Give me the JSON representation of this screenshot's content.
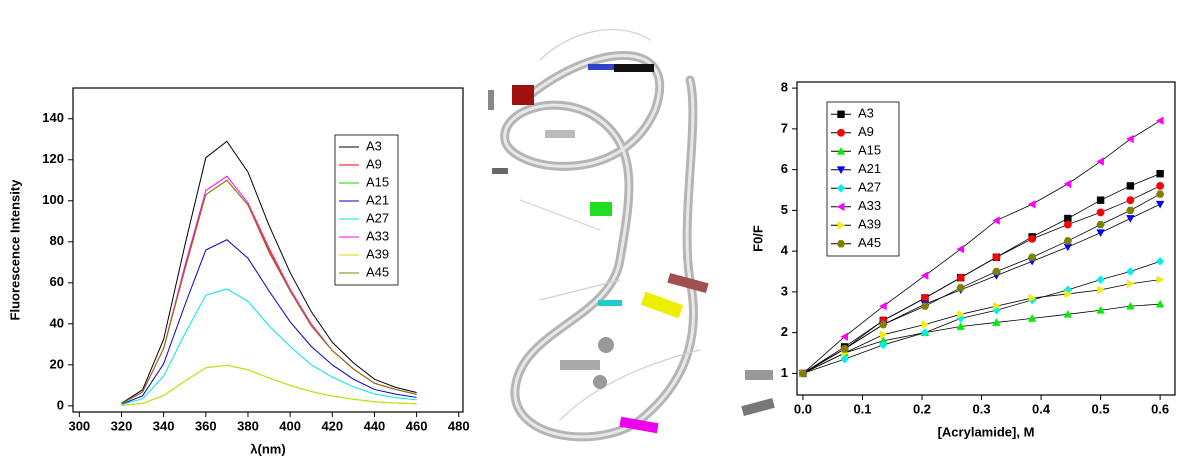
{
  "chart_data": [
    {
      "type": "line",
      "x_label": "λ(nm)",
      "y_label": "Fluorescence Intensity",
      "legend": "upper right",
      "markers": false,
      "x": [
        320,
        330,
        340,
        350,
        360,
        370,
        380,
        390,
        400,
        410,
        420,
        430,
        440,
        450,
        460
      ],
      "xlim": [
        297,
        482
      ],
      "ylim": [
        -3,
        155
      ],
      "xticks": [
        300,
        320,
        340,
        360,
        380,
        400,
        420,
        440,
        460,
        480
      ],
      "yticks": [
        0,
        20,
        40,
        60,
        80,
        100,
        120,
        140
      ],
      "series": [
        {
          "name": "A3",
          "color": "#000000",
          "values": [
            1.3,
            7.8,
            32.5,
            78,
            121,
            129,
            114,
            88,
            65,
            46,
            31,
            21,
            13,
            9,
            6.5
          ]
        },
        {
          "name": "A9",
          "color": "#ff0000",
          "values": [
            1.1,
            6.7,
            28,
            67,
            103,
            110,
            98,
            75,
            56,
            39,
            27,
            18,
            11,
            8,
            5.6
          ]
        },
        {
          "name": "A15",
          "color": "#00dd00",
          "values": [
            0.2,
            1.2,
            5,
            12,
            18.6,
            19.8,
            17.6,
            13.6,
            10,
            7,
            4.8,
            3.2,
            2,
            1.4,
            1
          ]
        },
        {
          "name": "A21",
          "color": "#0000cc",
          "values": [
            0.8,
            4.9,
            20.5,
            49,
            76,
            81,
            72,
            56,
            41,
            29,
            20,
            13,
            8,
            5.7,
            4.1
          ]
        },
        {
          "name": "A27",
          "color": "#00e5ee",
          "values": [
            0.6,
            3.5,
            14.5,
            35,
            54,
            57,
            51,
            39,
            29,
            20,
            14,
            9.3,
            5.8,
            4,
            2.9
          ]
        },
        {
          "name": "A33",
          "color": "#ff00ff",
          "values": [
            1.1,
            6.8,
            28,
            68,
            105,
            112,
            99,
            77,
            57,
            40,
            27,
            18,
            11,
            8,
            5.7
          ]
        },
        {
          "name": "A39",
          "color": "#dddd00",
          "values": [
            0.2,
            1.2,
            5,
            12,
            18.6,
            19.8,
            17.6,
            13.6,
            10,
            7,
            4.8,
            3.2,
            2,
            1.4,
            1
          ]
        },
        {
          "name": "A45",
          "color": "#808000",
          "values": [
            1.1,
            6.7,
            28,
            66,
            103,
            110,
            98,
            76,
            56,
            39,
            27,
            18,
            11,
            8,
            5.6
          ]
        }
      ]
    },
    {
      "type": "line",
      "x_label": "[Acrylamide], M",
      "y_label": "F0/F",
      "legend": "upper left",
      "markers": true,
      "x": [
        0,
        0.07,
        0.135,
        0.205,
        0.265,
        0.325,
        0.385,
        0.445,
        0.5,
        0.55,
        0.6
      ],
      "xlim": [
        -0.01,
        0.625
      ],
      "ylim": [
        0.47,
        8.15
      ],
      "xticks": [
        {
          "value": 0,
          "label": "0.0"
        },
        0.1,
        0.2,
        0.3,
        0.4,
        0.5,
        0.6
      ],
      "yticks": [
        1,
        2,
        3,
        4,
        5,
        6,
        7,
        8
      ],
      "series": [
        {
          "name": "A3",
          "color": "#000000",
          "marker": "square",
          "values": [
            1,
            1.65,
            2.3,
            2.85,
            3.35,
            3.85,
            4.35,
            4.8,
            5.25,
            5.6,
            5.9
          ]
        },
        {
          "name": "A9",
          "color": "#ff0000",
          "marker": "circle",
          "values": [
            1,
            1.6,
            2.3,
            2.85,
            3.35,
            3.85,
            4.3,
            4.65,
            4.95,
            5.25,
            5.6
          ]
        },
        {
          "name": "A15",
          "color": "#00ee00",
          "marker": "triangle-up",
          "values": [
            1,
            1.5,
            1.8,
            2.0,
            2.15,
            2.25,
            2.35,
            2.45,
            2.55,
            2.65,
            2.7
          ]
        },
        {
          "name": "A21",
          "color": "#0000ff",
          "marker": "triangle-down",
          "values": [
            1,
            1.6,
            2.2,
            2.7,
            3.05,
            3.4,
            3.75,
            4.1,
            4.45,
            4.8,
            5.15
          ]
        },
        {
          "name": "A27",
          "color": "#00eeee",
          "marker": "diamond",
          "values": [
            1,
            1.35,
            1.7,
            2.0,
            2.35,
            2.55,
            2.8,
            3.05,
            3.3,
            3.5,
            3.75
          ]
        },
        {
          "name": "A33",
          "color": "#ff00ff",
          "marker": "triangle-left",
          "values": [
            1,
            1.9,
            2.65,
            3.4,
            4.05,
            4.75,
            5.15,
            5.65,
            6.2,
            6.75,
            7.2
          ]
        },
        {
          "name": "A39",
          "color": "#eeee00",
          "marker": "triangle-right",
          "values": [
            1,
            1.5,
            1.95,
            2.2,
            2.45,
            2.65,
            2.85,
            2.95,
            3.05,
            3.2,
            3.3
          ]
        },
        {
          "name": "A45",
          "color": "#808000",
          "marker": "hexagon",
          "values": [
            1,
            1.6,
            2.2,
            2.65,
            3.1,
            3.5,
            3.85,
            4.25,
            4.65,
            5.0,
            5.4
          ]
        }
      ]
    }
  ]
}
